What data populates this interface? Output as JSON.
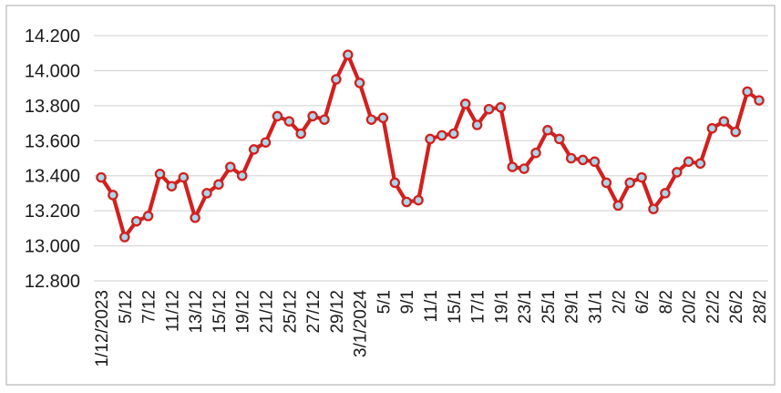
{
  "chart_data": {
    "type": "line",
    "title": "",
    "legend": "none",
    "grid": "horizontal",
    "y_axis": {
      "min": 12.8,
      "max": 14.2,
      "step": 0.2,
      "tick_labels": [
        "14.200",
        "14.000",
        "13.800",
        "13.600",
        "13.400",
        "13.200",
        "13.000",
        "12.800"
      ]
    },
    "x_axis": {
      "tick_every_n_points": 2,
      "tick_labels": [
        "1/12/2023",
        "5/12",
        "7/12",
        "11/12",
        "13/12",
        "15/12",
        "19/12",
        "21/12",
        "25/12",
        "27/12",
        "29/12",
        "3/1/2024",
        "5/1",
        "9/1",
        "11/1",
        "15/1",
        "17/1",
        "19/1",
        "23/1",
        "25/1",
        "29/1",
        "31/1",
        "2/2",
        "6/2",
        "8/2",
        "20/2",
        "22/2",
        "26/2",
        "28/2"
      ]
    },
    "values": [
      13.39,
      13.29,
      13.05,
      13.14,
      13.17,
      13.41,
      13.34,
      13.39,
      13.16,
      13.3,
      13.35,
      13.45,
      13.4,
      13.55,
      13.59,
      13.74,
      13.71,
      13.64,
      13.74,
      13.72,
      13.95,
      14.09,
      13.93,
      13.72,
      13.73,
      13.36,
      13.25,
      13.26,
      13.61,
      13.63,
      13.64,
      13.81,
      13.69,
      13.78,
      13.79,
      13.45,
      13.44,
      13.53,
      13.66,
      13.61,
      13.5,
      13.49,
      13.48,
      13.36,
      13.23,
      13.36,
      13.39,
      13.21,
      13.3,
      13.42,
      13.48,
      13.47,
      13.67,
      13.71,
      13.65,
      13.88,
      13.83
    ],
    "style": {
      "line_color": "#D2201E",
      "marker_shape": "circle",
      "marker_fill": "#A8D8EA",
      "marker_border": "#D2201E",
      "gridline_color": "#D9D9D9",
      "frame_color": "#C2C2C2",
      "text_color": "#1A1A1A"
    }
  }
}
